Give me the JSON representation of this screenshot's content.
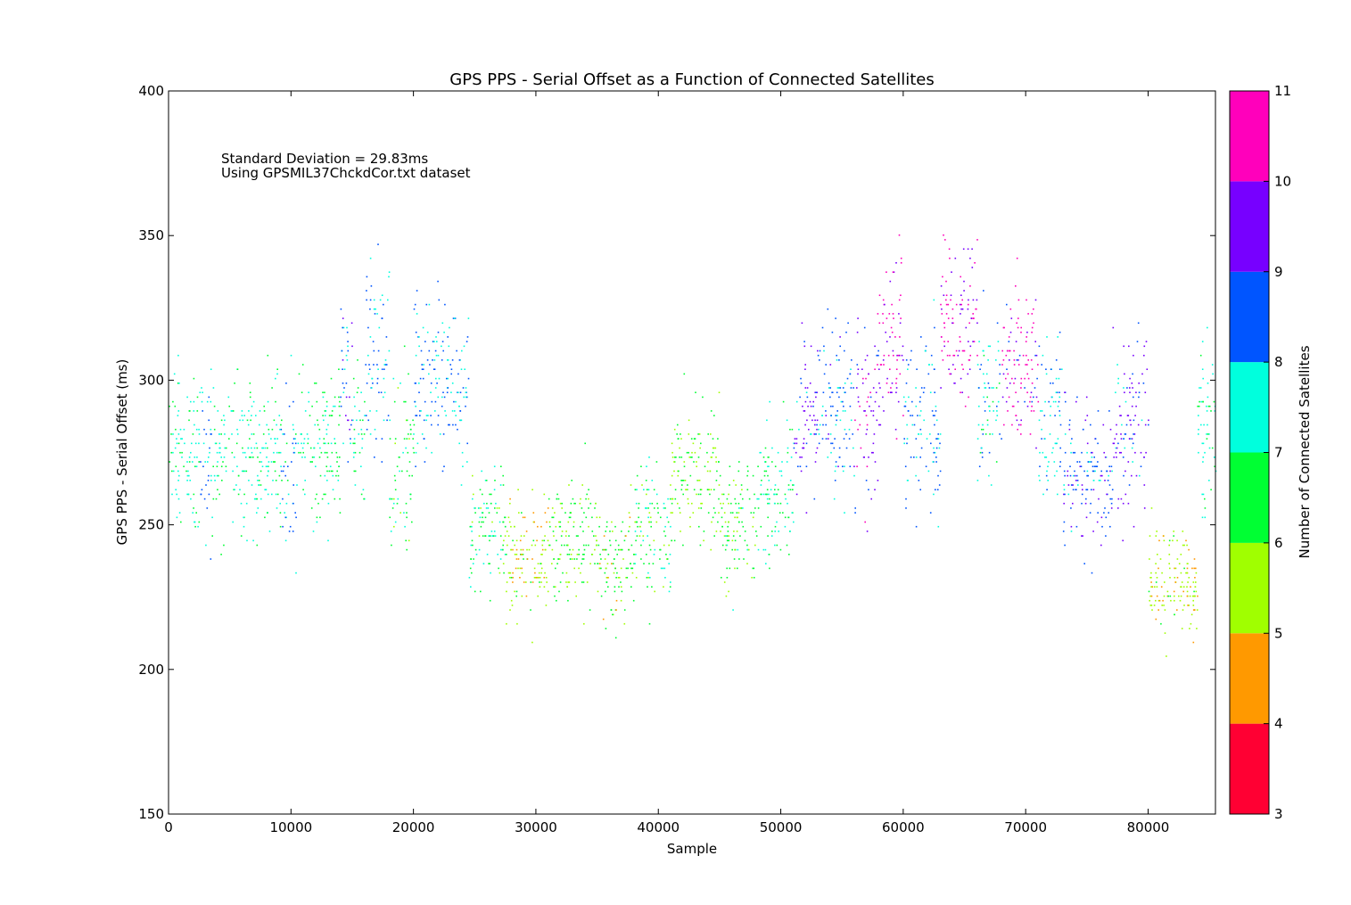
{
  "chart_data": {
    "type": "scatter",
    "title": "GPS PPS - Serial Offset as a Function of Connected Satellites",
    "xlabel": "Sample",
    "ylabel": "GPS PPS - Serial Offset (ms)",
    "xlim": [
      0,
      85500
    ],
    "ylim": [
      150,
      400
    ],
    "xticks": [
      0,
      10000,
      20000,
      30000,
      40000,
      50000,
      60000,
      70000,
      80000
    ],
    "yticks": [
      150,
      200,
      250,
      300,
      350,
      400
    ],
    "grid": false,
    "annotations": [
      "Standard Deviation = 29.83ms",
      "Using GPSMIL37ChckdCor.txt dataset"
    ],
    "colorbar": {
      "label": "Number of Connected Satellites",
      "ticks": [
        3,
        4,
        5,
        6,
        7,
        8,
        9,
        10,
        11
      ],
      "bands": [
        {
          "from": 3,
          "to": 4,
          "color": "#ff0033"
        },
        {
          "from": 4,
          "to": 5,
          "color": "#ff9900"
        },
        {
          "from": 5,
          "to": 6,
          "color": "#a0ff00"
        },
        {
          "from": 6,
          "to": 7,
          "color": "#00ff33"
        },
        {
          "from": 7,
          "to": 8,
          "color": "#00ffdd"
        },
        {
          "from": 8,
          "to": 9,
          "color": "#0055ff"
        },
        {
          "from": 9,
          "to": 10,
          "color": "#7700ff"
        },
        {
          "from": 10,
          "to": 11,
          "color": "#ff00bb"
        }
      ]
    },
    "segments": [
      {
        "x": [
          0,
          2500
        ],
        "y_center": 275,
        "y_spread": 28,
        "satellites": [
          7,
          6
        ]
      },
      {
        "x": [
          2500,
          3500
        ],
        "y_center": 275,
        "y_spread": 35,
        "satellites": [
          8,
          7
        ]
      },
      {
        "x": [
          3500,
          9000
        ],
        "y_center": 275,
        "y_spread": 28,
        "satellites": [
          7,
          6
        ]
      },
      {
        "x": [
          9000,
          10500
        ],
        "y_center": 270,
        "y_spread": 32,
        "satellites": [
          8,
          7,
          6
        ]
      },
      {
        "x": [
          10500,
          14000
        ],
        "y_center": 275,
        "y_spread": 28,
        "satellites": [
          6,
          7
        ]
      },
      {
        "x": [
          14000,
          15000
        ],
        "y_center": 305,
        "y_spread": 30,
        "satellites": [
          8,
          9,
          7
        ]
      },
      {
        "x": [
          15000,
          16000
        ],
        "y_center": 280,
        "y_spread": 25,
        "satellites": [
          7,
          6
        ]
      },
      {
        "x": [
          16000,
          18000
        ],
        "y_center": 308,
        "y_spread": 32,
        "satellites": [
          8,
          7
        ]
      },
      {
        "x": [
          18000,
          20000
        ],
        "y_center": 272,
        "y_spread": 28,
        "satellites": [
          6,
          7,
          5
        ]
      },
      {
        "x": [
          20000,
          24500
        ],
        "y_center": 300,
        "y_spread": 30,
        "satellites": [
          8,
          7
        ]
      },
      {
        "x": [
          24500,
          27500
        ],
        "y_center": 250,
        "y_spread": 22,
        "satellites": [
          6,
          7,
          5
        ]
      },
      {
        "x": [
          27500,
          31000
        ],
        "y_center": 240,
        "y_spread": 20,
        "satellites": [
          5,
          4,
          6
        ]
      },
      {
        "x": [
          31000,
          35000
        ],
        "y_center": 245,
        "y_spread": 22,
        "satellites": [
          6,
          5
        ]
      },
      {
        "x": [
          35000,
          38000
        ],
        "y_center": 235,
        "y_spread": 20,
        "satellites": [
          6,
          5,
          4
        ]
      },
      {
        "x": [
          38000,
          41000
        ],
        "y_center": 250,
        "y_spread": 22,
        "satellites": [
          6,
          7,
          5,
          4
        ]
      },
      {
        "x": [
          41000,
          45000
        ],
        "y_center": 268,
        "y_spread": 25,
        "satellites": [
          6,
          5
        ]
      },
      {
        "x": [
          45000,
          48000
        ],
        "y_center": 250,
        "y_spread": 22,
        "satellites": [
          6,
          5,
          7
        ]
      },
      {
        "x": [
          48000,
          51000
        ],
        "y_center": 262,
        "y_spread": 25,
        "satellites": [
          7,
          6
        ]
      },
      {
        "x": [
          51000,
          53000
        ],
        "y_center": 288,
        "y_spread": 30,
        "satellites": [
          9,
          8,
          7
        ]
      },
      {
        "x": [
          53000,
          56000
        ],
        "y_center": 290,
        "y_spread": 30,
        "satellites": [
          8,
          7,
          9
        ]
      },
      {
        "x": [
          56000,
          58000
        ],
        "y_center": 290,
        "y_spread": 32,
        "satellites": [
          9,
          10,
          8
        ]
      },
      {
        "x": [
          58000,
          60000
        ],
        "y_center": 312,
        "y_spread": 30,
        "satellites": [
          10,
          9
        ]
      },
      {
        "x": [
          60000,
          63000
        ],
        "y_center": 285,
        "y_spread": 32,
        "satellites": [
          8,
          7
        ]
      },
      {
        "x": [
          63000,
          66000
        ],
        "y_center": 320,
        "y_spread": 28,
        "satellites": [
          10,
          9
        ]
      },
      {
        "x": [
          66000,
          68000
        ],
        "y_center": 295,
        "y_spread": 28,
        "satellites": [
          7,
          8,
          6
        ]
      },
      {
        "x": [
          68000,
          71000
        ],
        "y_center": 305,
        "y_spread": 28,
        "satellites": [
          10,
          9,
          8
        ]
      },
      {
        "x": [
          71000,
          73000
        ],
        "y_center": 285,
        "y_spread": 30,
        "satellites": [
          7,
          8
        ]
      },
      {
        "x": [
          73000,
          77000
        ],
        "y_center": 270,
        "y_spread": 28,
        "satellites": [
          8,
          9,
          7
        ]
      },
      {
        "x": [
          77000,
          80000
        ],
        "y_center": 285,
        "y_spread": 32,
        "satellites": [
          9,
          8,
          7
        ]
      },
      {
        "x": [
          80000,
          84000
        ],
        "y_center": 230,
        "y_spread": 18,
        "satellites": [
          5,
          4,
          6
        ]
      },
      {
        "x": [
          84000,
          85500
        ],
        "y_center": 280,
        "y_spread": 30,
        "satellites": [
          7,
          6
        ]
      }
    ]
  }
}
